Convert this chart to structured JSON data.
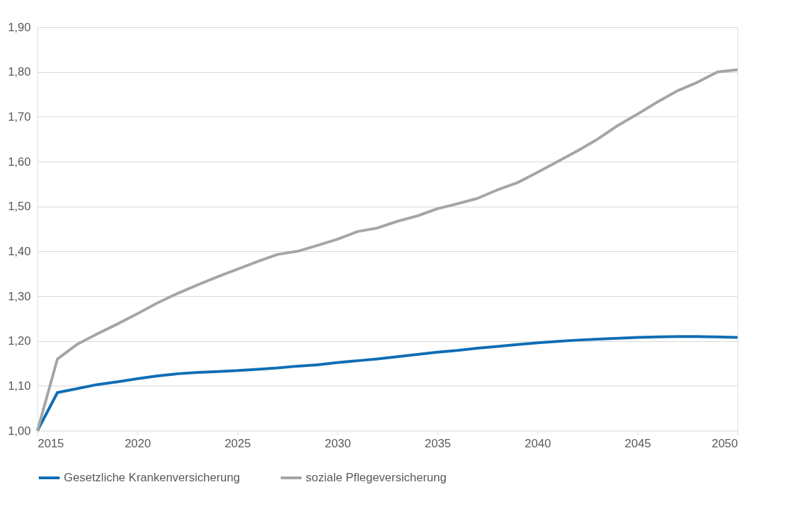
{
  "chart_data": {
    "type": "line",
    "x": [
      2015,
      2016,
      2017,
      2018,
      2019,
      2020,
      2021,
      2022,
      2023,
      2024,
      2025,
      2026,
      2027,
      2028,
      2029,
      2030,
      2031,
      2032,
      2033,
      2034,
      2035,
      2036,
      2037,
      2038,
      2039,
      2040,
      2041,
      2042,
      2043,
      2044,
      2045,
      2046,
      2047,
      2048,
      2049,
      2050
    ],
    "series": [
      {
        "name": "Gesetzliche Krankenversicherung",
        "color": "#0f6db5",
        "values": [
          1.0,
          1.085,
          1.094,
          1.103,
          1.109,
          1.116,
          1.122,
          1.127,
          1.13,
          1.132,
          1.134,
          1.137,
          1.14,
          1.144,
          1.147,
          1.152,
          1.156,
          1.16,
          1.165,
          1.17,
          1.175,
          1.179,
          1.184,
          1.188,
          1.192,
          1.196,
          1.199,
          1.202,
          1.204,
          1.206,
          1.208,
          1.209,
          1.21,
          1.21,
          1.209,
          1.208
        ]
      },
      {
        "name": "soziale Pflegeversicherung",
        "color": "#a5a5a5",
        "values": [
          1.0,
          1.16,
          1.193,
          1.216,
          1.238,
          1.261,
          1.285,
          1.306,
          1.325,
          1.343,
          1.36,
          1.377,
          1.393,
          1.4,
          1.413,
          1.427,
          1.444,
          1.452,
          1.467,
          1.479,
          1.495,
          1.506,
          1.518,
          1.537,
          1.553,
          1.576,
          1.6,
          1.624,
          1.65,
          1.68,
          1.706,
          1.733,
          1.758,
          1.777,
          1.8,
          1.805
        ]
      }
    ],
    "xlim": [
      2015,
      2050
    ],
    "xticks": [
      2015,
      2020,
      2025,
      2030,
      2035,
      2040,
      2045,
      2050
    ],
    "ylim": [
      1.0,
      1.9
    ],
    "yticks": [
      {
        "value": 1.0,
        "label": "1,00"
      },
      {
        "value": 1.1,
        "label": "1,10"
      },
      {
        "value": 1.2,
        "label": "1,20"
      },
      {
        "value": 1.3,
        "label": "1,30"
      },
      {
        "value": 1.4,
        "label": "1,40"
      },
      {
        "value": 1.5,
        "label": "1,50"
      },
      {
        "value": 1.6,
        "label": "1,60"
      },
      {
        "value": 1.7,
        "label": "1,70"
      },
      {
        "value": 1.8,
        "label": "1,80"
      },
      {
        "value": 1.9,
        "label": "1,90"
      }
    ],
    "grid": "y",
    "legend": "bottom",
    "marker": "none",
    "line_style": "solid"
  }
}
